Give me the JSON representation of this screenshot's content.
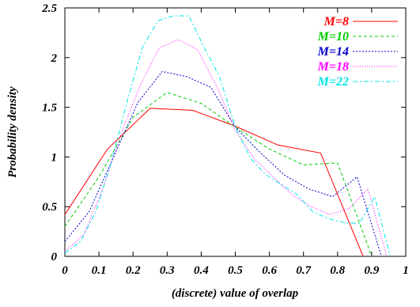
{
  "chart_data": {
    "type": "line",
    "xlabel": "(discrete) value of overlap",
    "ylabel": "Probability density",
    "xlim": [
      0,
      1
    ],
    "ylim": [
      0,
      2.5
    ],
    "xticks": [
      "0",
      "0.1",
      "0.2",
      "0.3",
      "0.4",
      "0.5",
      "0.6",
      "0.7",
      "0.8",
      "0.9",
      "1"
    ],
    "yticks": [
      "0",
      "0.5",
      "1",
      "1.5",
      "2",
      "2.5"
    ],
    "legend_position": "top-right",
    "series": [
      {
        "name": "M=8",
        "color": "#ff0000",
        "dash": "solid",
        "x": [
          0,
          0.125,
          0.25,
          0.375,
          0.5,
          0.625,
          0.75,
          0.875
        ],
        "y": [
          0.42,
          1.08,
          1.49,
          1.47,
          1.31,
          1.12,
          1.04,
          0.0
        ]
      },
      {
        "name": "M=10",
        "color": "#00cc00",
        "dash": "dashed",
        "x": [
          0,
          0.1,
          0.2,
          0.3,
          0.4,
          0.5,
          0.6,
          0.7,
          0.8,
          0.9
        ],
        "y": [
          0.3,
          0.8,
          1.4,
          1.65,
          1.54,
          1.3,
          1.08,
          0.92,
          0.94,
          0.0
        ]
      },
      {
        "name": "M=14",
        "color": "#0000cc",
        "dash": "dotted",
        "x": [
          0,
          0.0714,
          0.1429,
          0.2143,
          0.2857,
          0.3571,
          0.4286,
          0.5,
          0.5714,
          0.6429,
          0.7143,
          0.7857,
          0.8571,
          0.9286
        ],
        "y": [
          0.15,
          0.45,
          1.0,
          1.55,
          1.86,
          1.81,
          1.7,
          1.3,
          1.05,
          0.82,
          0.68,
          0.6,
          0.8,
          0.0
        ]
      },
      {
        "name": "M=18",
        "color": "#ff00ff",
        "dash": "dotted-fine",
        "x": [
          0,
          0.0556,
          0.1111,
          0.1667,
          0.2222,
          0.2778,
          0.3333,
          0.3889,
          0.4444,
          0.5,
          0.5556,
          0.6111,
          0.6667,
          0.7222,
          0.7778,
          0.8333,
          0.8889,
          0.9444
        ],
        "y": [
          0.05,
          0.22,
          0.68,
          1.25,
          1.73,
          2.1,
          2.18,
          2.08,
          1.72,
          1.27,
          0.98,
          0.8,
          0.62,
          0.5,
          0.42,
          0.48,
          0.68,
          0.0
        ]
      },
      {
        "name": "M=22",
        "color": "#00e5e5",
        "dash": "dash-dot",
        "x": [
          0,
          0.0455,
          0.0909,
          0.1364,
          0.1818,
          0.2273,
          0.2727,
          0.3182,
          0.3636,
          0.4091,
          0.4545,
          0.5,
          0.5455,
          0.5909,
          0.6364,
          0.6818,
          0.7273,
          0.7727,
          0.8182,
          0.8636,
          0.9091,
          0.9545
        ],
        "y": [
          0.03,
          0.15,
          0.45,
          0.95,
          1.55,
          2.1,
          2.37,
          2.42,
          2.42,
          2.1,
          1.8,
          1.3,
          0.98,
          0.82,
          0.72,
          0.62,
          0.45,
          0.38,
          0.34,
          0.33,
          0.6,
          0.0
        ]
      }
    ]
  }
}
